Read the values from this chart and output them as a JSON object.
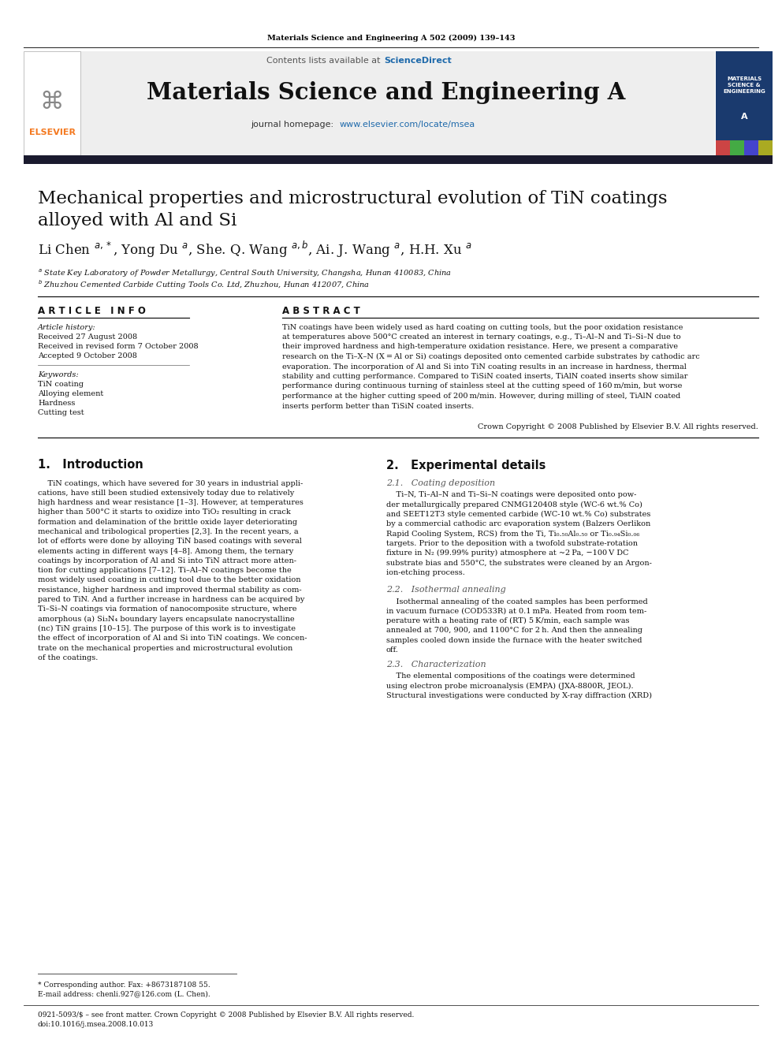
{
  "journal_ref": "Materials Science and Engineering A 502 (2009) 139–143",
  "contents_note": "Contents lists available at ScienceDirect",
  "journal_name": "Materials Science and Engineering A",
  "journal_homepage": "journal homepage: www.elsevier.com/locate/msea",
  "title_line1": "Mechanical properties and microstructural evolution of TiN coatings",
  "title_line2": "alloyed with Al and Si",
  "authors_line": "Li Chen $^{a,*}$, Yong Du $^{a}$, She. Q. Wang $^{a,b}$, Ai. J. Wang $^{a}$, H.H. Xu $^{a}$",
  "affil_a": "$^{a}$ State Key Laboratory of Powder Metallurgy, Central South University, Changsha, Hunan 410083, China",
  "affil_b": "$^{b}$ Zhuzhou Cemented Carbide Cutting Tools Co. Ltd, Zhuzhou, Hunan 412007, China",
  "article_info_header": "A R T I C L E   I N F O",
  "abstract_header": "A B S T R A C T",
  "article_history_label": "Article history:",
  "received1": "Received 27 August 2008",
  "received2": "Received in revised form 7 October 2008",
  "accepted": "Accepted 9 October 2008",
  "keywords_label": "Keywords:",
  "kw1": "TiN coating",
  "kw2": "Alloying element",
  "kw3": "Hardness",
  "kw4": "Cutting test",
  "copyright": "Crown Copyright © 2008 Published by Elsevier B.V. All rights reserved.",
  "section1_head": "1.   Introduction",
  "section2_head": "2.   Experimental details",
  "section21_head": "2.1.   Coating deposition",
  "section22_head": "2.2.   Isothermal annealing",
  "section23_head": "2.3.   Characterization",
  "footnote_star": "* Corresponding author. Fax: +8673187108 55.",
  "footnote_email": "E-mail address: chenli.927@126.com (L. Chen).",
  "issn": "0921-5093/$ – see front matter. Crown Copyright © 2008 Published by Elsevier B.V. All rights reserved.",
  "doi": "doi:10.1016/j.msea.2008.10.013",
  "bg_color": "#ffffff",
  "elsevier_orange": "#f47920",
  "sciencedirect_blue": "#1f6aab",
  "link_blue": "#1f6aab"
}
